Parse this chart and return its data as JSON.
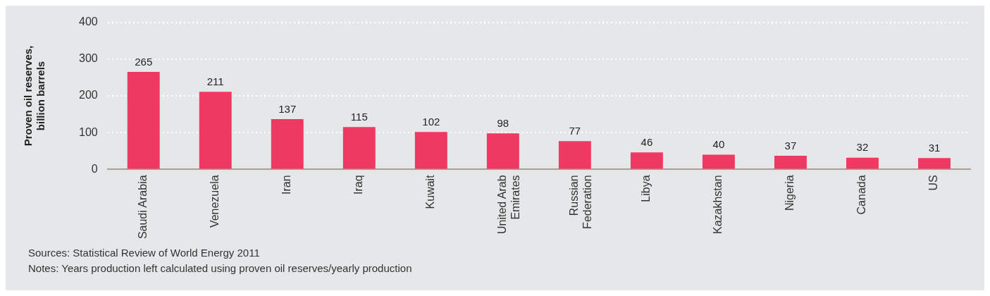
{
  "chart_data": {
    "type": "bar",
    "ylabel": "Proven oil reserves, billion barrels",
    "categories": [
      "Saudi Arabia",
      "Venezuela",
      "Iran",
      "Iraq",
      "Kuwait",
      "United Arab Emirates",
      "Russian Federation",
      "Libya",
      "Kazakhstan",
      "Nigeria",
      "Canada",
      "US"
    ],
    "values": [
      265,
      211,
      137,
      115,
      102,
      98,
      77,
      46,
      40,
      37,
      32,
      31
    ],
    "color": "#ee3a62",
    "ylim": [
      0,
      400
    ],
    "yticks": [
      0,
      100,
      200,
      300,
      400
    ],
    "grid": "y",
    "legend": false,
    "data_labels": true,
    "annotations": [
      "Sources: Statistical Review of World Energy 2011",
      "Notes: Years production left calculated using proven oil reserves/yearly production"
    ]
  }
}
